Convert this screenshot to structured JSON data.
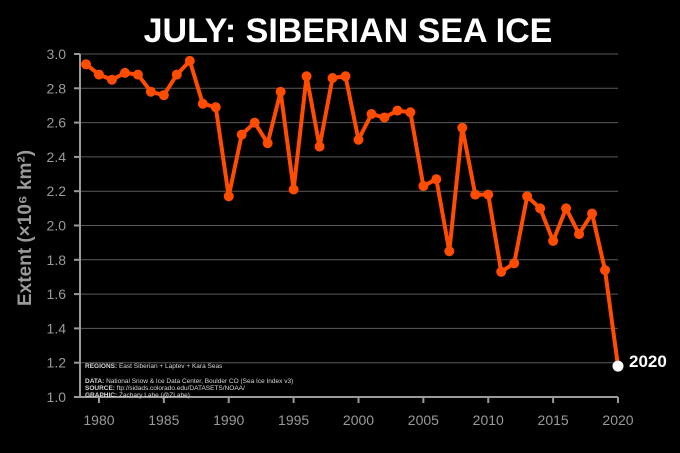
{
  "chart_data": {
    "type": "line",
    "title": "JULY: SIBERIAN SEA ICE",
    "ylabel": "Extent (×10⁶ km²)",
    "xlabel": "",
    "xlim": [
      1979,
      2020
    ],
    "ylim": [
      1.0,
      3.0
    ],
    "xticks": [
      "1980",
      "1985",
      "1990",
      "1995",
      "2000",
      "2005",
      "2010",
      "2015",
      "2020"
    ],
    "yticks": [
      "1.0",
      "1.2",
      "1.4",
      "1.6",
      "1.8",
      "2.0",
      "2.2",
      "2.4",
      "2.6",
      "2.8",
      "3.0"
    ],
    "grid": true,
    "series_color": "#ff4c00",
    "highlight_color": "#ffffff",
    "x": [
      1979,
      1980,
      1981,
      1982,
      1983,
      1984,
      1985,
      1986,
      1987,
      1988,
      1989,
      1990,
      1991,
      1992,
      1993,
      1994,
      1995,
      1996,
      1997,
      1998,
      1999,
      2000,
      2001,
      2002,
      2003,
      2004,
      2005,
      2006,
      2007,
      2008,
      2009,
      2010,
      2011,
      2012,
      2013,
      2014,
      2015,
      2016,
      2017,
      2018,
      2019,
      2020
    ],
    "values": [
      2.94,
      2.88,
      2.85,
      2.89,
      2.88,
      2.78,
      2.76,
      2.88,
      2.96,
      2.71,
      2.69,
      2.17,
      2.53,
      2.6,
      2.48,
      2.78,
      2.21,
      2.87,
      2.46,
      2.86,
      2.87,
      2.5,
      2.65,
      2.63,
      2.67,
      2.66,
      2.23,
      2.27,
      1.85,
      2.57,
      2.18,
      2.18,
      1.73,
      1.78,
      2.17,
      2.1,
      1.91,
      2.1,
      1.95,
      2.07,
      1.74,
      1.18
    ],
    "highlight": {
      "x": 2020,
      "label": "2020"
    },
    "notes": [
      {
        "bold": "REGIONS:",
        "text": " East Siberian + Laptev + Kara Seas"
      },
      {
        "bold": "DATA:",
        "text": " National Snow & Ice Data Center, Boulder CO (Sea Ice Index v3)"
      },
      {
        "bold": "SOURCE:",
        "text": " ftp://sidads.colorado.edu/DATASETS/NOAA/"
      },
      {
        "bold": "GRAPHIC:",
        "text": " Zachary Labe (@ZLabe)"
      }
    ]
  }
}
